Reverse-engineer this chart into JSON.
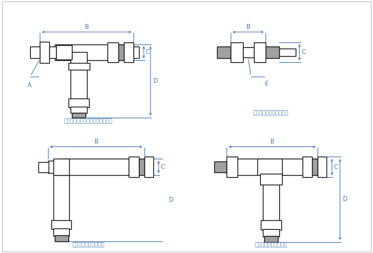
{
  "bg": "#ffffff",
  "lc": "#1a1a1a",
  "gc": "#a0a0a0",
  "dc": "#4a7ab5",
  "tc": "#4a7ab5",
  "border": "#cccccc",
  "lw_main": 0.9,
  "lw_dim": 0.7,
  "labels": {
    "stl": "ＳＴＬ：スタッドチーズ（Ｌ型）",
    "eu": "ＥＵ：イコールユニオン",
    "el": "ＥＬ：イコールエルボ",
    "et": "ＥＴ：イコールチーズ"
  }
}
